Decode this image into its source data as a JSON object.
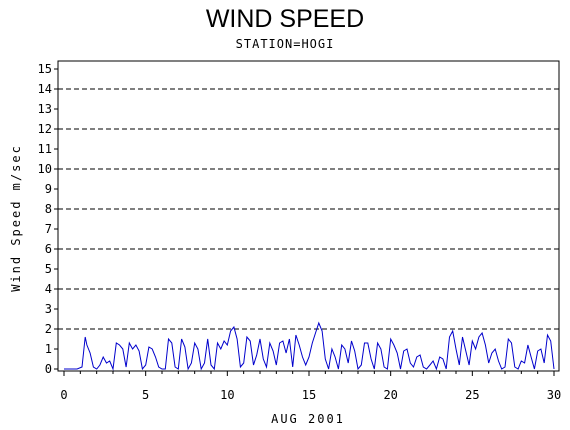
{
  "chart_data": {
    "type": "line",
    "title": "WIND SPEED",
    "subtitle": "STATION=HOGI",
    "xlabel": "AUG 2001",
    "ylabel": "Wind Speed m/sec",
    "xlim": [
      0,
      30
    ],
    "ylim": [
      0,
      15
    ],
    "x_ticks": [
      0,
      5,
      10,
      15,
      20,
      25,
      30
    ],
    "y_ticks": [
      0,
      1,
      2,
      3,
      4,
      5,
      6,
      7,
      8,
      9,
      10,
      11,
      12,
      13,
      14,
      15
    ],
    "grid_y": [
      2,
      4,
      6,
      8,
      10,
      12,
      14
    ],
    "grid_style": "dashed",
    "line_color": "#0000cc",
    "series": [
      {
        "x": [
          0.0,
          0.4,
          0.8,
          1.1,
          1.3,
          1.4,
          1.6,
          1.8,
          2.0,
          2.2,
          2.4,
          2.6,
          2.8,
          3.0,
          3.2,
          3.4,
          3.6,
          3.8,
          4.0,
          4.2,
          4.4,
          4.6,
          4.8,
          5.0,
          5.2,
          5.4,
          5.6,
          5.8,
          6.0,
          6.2,
          6.4,
          6.6,
          6.8,
          7.0,
          7.2,
          7.4,
          7.6,
          7.8,
          8.0,
          8.2,
          8.4,
          8.6,
          8.8,
          9.0,
          9.2,
          9.4,
          9.6,
          9.8,
          10.0,
          10.2,
          10.4,
          10.6,
          10.8,
          11.0,
          11.2,
          11.4,
          11.6,
          11.8,
          12.0,
          12.2,
          12.4,
          12.6,
          12.8,
          13.0,
          13.2,
          13.4,
          13.6,
          13.8,
          14.0,
          14.2,
          14.4,
          14.6,
          14.8,
          15.0,
          15.2,
          15.4,
          15.6,
          15.8,
          16.0,
          16.2,
          16.4,
          16.6,
          16.8,
          17.0,
          17.2,
          17.4,
          17.6,
          17.8,
          18.0,
          18.2,
          18.4,
          18.6,
          18.8,
          19.0,
          19.2,
          19.4,
          19.6,
          19.8,
          20.0,
          20.2,
          20.4,
          20.6,
          20.8,
          21.0,
          21.2,
          21.4,
          21.6,
          21.8,
          22.0,
          22.2,
          22.4,
          22.6,
          22.8,
          23.0,
          23.2,
          23.4,
          23.6,
          23.8,
          24.0,
          24.2,
          24.4,
          24.6,
          24.8,
          25.0,
          25.2,
          25.4,
          25.6,
          25.8,
          26.0,
          26.2,
          26.4,
          26.6,
          26.8,
          27.0,
          27.2,
          27.4,
          27.6,
          27.8,
          28.0,
          28.2,
          28.4,
          28.6,
          28.8,
          29.0,
          29.2,
          29.4,
          29.6,
          29.8,
          30.0
        ],
        "y": [
          0.0,
          0.0,
          0.0,
          0.1,
          1.6,
          1.2,
          0.8,
          0.1,
          0.0,
          0.2,
          0.6,
          0.3,
          0.4,
          0.0,
          1.3,
          1.2,
          1.0,
          0.1,
          1.3,
          1.0,
          1.2,
          0.9,
          0.0,
          0.2,
          1.1,
          1.0,
          0.6,
          0.1,
          0.0,
          0.0,
          1.5,
          1.3,
          0.1,
          0.0,
          1.5,
          1.1,
          0.0,
          0.3,
          1.3,
          1.0,
          0.0,
          0.3,
          1.5,
          0.2,
          0.0,
          1.3,
          1.0,
          1.4,
          1.2,
          1.9,
          2.1,
          1.5,
          0.1,
          0.3,
          1.6,
          1.4,
          0.2,
          0.7,
          1.5,
          0.5,
          0.1,
          1.3,
          0.9,
          0.2,
          1.3,
          1.4,
          0.8,
          1.5,
          0.1,
          1.7,
          1.2,
          0.6,
          0.2,
          0.6,
          1.3,
          1.8,
          2.3,
          1.9,
          0.5,
          0.0,
          1.0,
          0.6,
          0.0,
          1.2,
          1.0,
          0.3,
          1.4,
          0.9,
          0.0,
          0.2,
          1.3,
          1.3,
          0.5,
          0.0,
          1.3,
          1.0,
          0.1,
          0.0,
          1.5,
          1.2,
          0.8,
          0.0,
          0.9,
          1.0,
          0.3,
          0.1,
          0.6,
          0.7,
          0.1,
          0.0,
          0.2,
          0.4,
          0.0,
          0.6,
          0.5,
          0.0,
          1.6,
          1.9,
          1.0,
          0.2,
          1.6,
          0.9,
          0.2,
          1.4,
          1.0,
          1.6,
          1.8,
          1.2,
          0.3,
          0.8,
          1.0,
          0.4,
          0.0,
          0.1,
          1.5,
          1.3,
          0.1,
          0.0,
          0.4,
          0.3,
          1.2,
          0.6,
          0.0,
          0.9,
          1.0,
          0.3,
          1.7,
          1.4,
          0.0
        ]
      }
    ]
  }
}
